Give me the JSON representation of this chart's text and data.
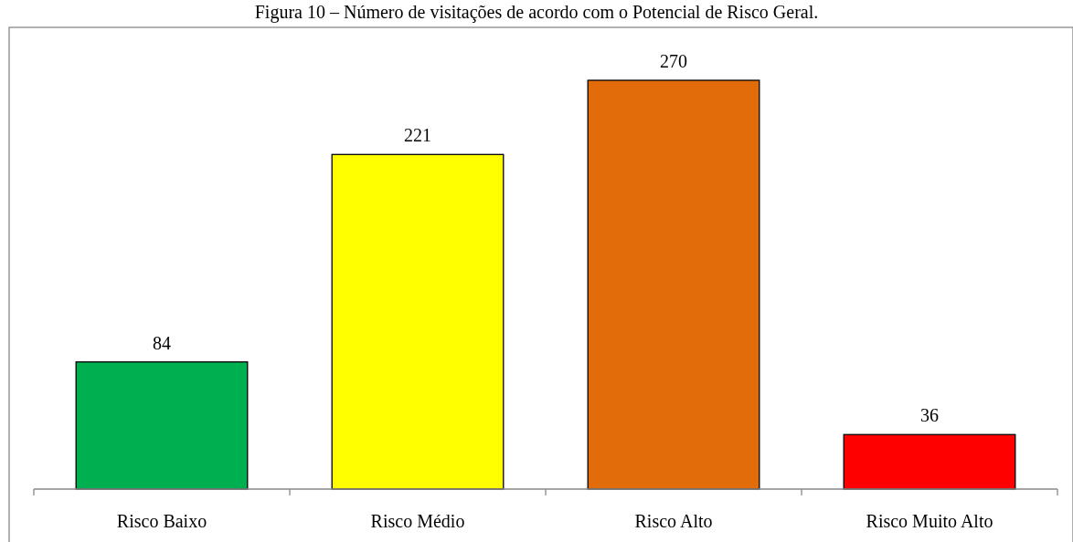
{
  "chart_data": {
    "type": "bar",
    "title": "Figura 10 – Número de visitações de acordo com o Potencial de Risco Geral.",
    "categories": [
      "Risco Baixo",
      "Risco Médio",
      "Risco Alto",
      "Risco Muito Alto"
    ],
    "values": [
      84,
      221,
      270,
      36
    ],
    "colors": [
      "#00b050",
      "#ffff00",
      "#e36c0a",
      "#ff0000"
    ],
    "data_labels": true
  }
}
